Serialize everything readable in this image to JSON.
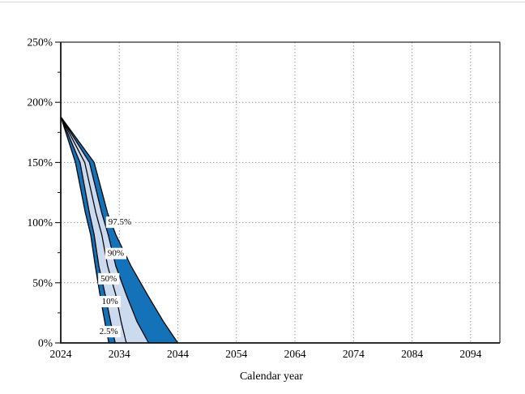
{
  "page": {
    "background": "#ffffff"
  },
  "chart_data": {
    "type": "area",
    "title": "",
    "xlabel": "Calendar year",
    "ylabel": "",
    "x_domain": [
      2024,
      2099
    ],
    "y_domain": [
      0,
      250
    ],
    "x_ticks": [
      2024,
      2034,
      2044,
      2054,
      2064,
      2074,
      2084,
      2094
    ],
    "y_ticks_major": [
      0,
      50,
      100,
      150,
      200,
      250
    ],
    "y_ticks_minor": [
      25,
      75,
      125,
      175,
      225
    ],
    "y_tick_suffix": "%",
    "grid": {
      "horizontal": [
        50,
        100,
        150,
        200
      ],
      "vertical": [
        2034,
        2044,
        2054,
        2064,
        2074,
        2084,
        2094
      ],
      "style": "dotted",
      "color": "#8f8f8f"
    },
    "colors": {
      "band_outer": "#1472b8",
      "band_inner": "#cbdaee",
      "line": "#000000"
    },
    "series": [
      {
        "name": "2.5%",
        "points": [
          [
            2024,
            188
          ],
          [
            2026.5,
            150
          ],
          [
            2028.2,
            108
          ],
          [
            2029.1,
            90
          ],
          [
            2029.9,
            64
          ],
          [
            2030.7,
            40
          ],
          [
            2031.5,
            18
          ],
          [
            2032.2,
            0
          ]
        ]
      },
      {
        "name": "10%",
        "points": [
          [
            2024,
            188
          ],
          [
            2027.3,
            150
          ],
          [
            2028.9,
            108
          ],
          [
            2029.7,
            90
          ],
          [
            2030.5,
            64
          ],
          [
            2031.6,
            40
          ],
          [
            2032.5,
            18
          ],
          [
            2033.3,
            0
          ]
        ]
      },
      {
        "name": "50%",
        "points": [
          [
            2024,
            188
          ],
          [
            2028.1,
            150
          ],
          [
            2030.0,
            108
          ],
          [
            2031.0,
            90
          ],
          [
            2032.0,
            64
          ],
          [
            2033.4,
            40
          ],
          [
            2034.3,
            18
          ],
          [
            2035.2,
            0
          ]
        ]
      },
      {
        "name": "90%",
        "points": [
          [
            2024,
            188
          ],
          [
            2028.9,
            150
          ],
          [
            2031.0,
            108
          ],
          [
            2032.1,
            90
          ],
          [
            2033.4,
            64
          ],
          [
            2035.2,
            40
          ],
          [
            2037.0,
            18
          ],
          [
            2039.0,
            0
          ]
        ]
      },
      {
        "name": "97.5%",
        "points": [
          [
            2024,
            188
          ],
          [
            2029.7,
            150
          ],
          [
            2032.0,
            108
          ],
          [
            2033.4,
            90
          ],
          [
            2036.0,
            64
          ],
          [
            2038.8,
            40
          ],
          [
            2041.5,
            18
          ],
          [
            2044.0,
            0
          ]
        ]
      }
    ],
    "bands": [
      {
        "from": "2.5%",
        "to": "10%",
        "color_key": "band_outer"
      },
      {
        "from": "10%",
        "to": "90%",
        "color_key": "band_inner"
      },
      {
        "from": "90%",
        "to": "97.5%",
        "color_key": "band_outer"
      }
    ],
    "labels": [
      {
        "text": "97.5%",
        "year": 2034.1,
        "pct": 101
      },
      {
        "text": "90%",
        "year": 2033.4,
        "pct": 75
      },
      {
        "text": "50%",
        "year": 2032.2,
        "pct": 54
      },
      {
        "text": "10%",
        "year": 2032.4,
        "pct": 35
      },
      {
        "text": "2.5%",
        "year": 2032.2,
        "pct": 10
      }
    ],
    "legend_position": "none"
  }
}
